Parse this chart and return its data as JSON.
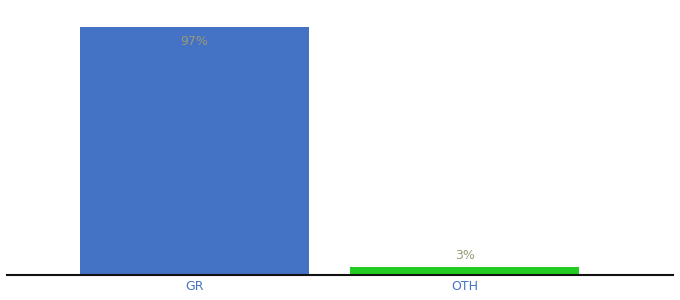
{
  "categories": [
    "GR",
    "OTH"
  ],
  "values": [
    97,
    3
  ],
  "bar_colors": [
    "#4472c4",
    "#22cc22"
  ],
  "label_texts": [
    "97%",
    "3%"
  ],
  "label_color": "#999977",
  "xlabel": "",
  "ylabel": "",
  "ylim": [
    0,
    105
  ],
  "background_color": "#ffffff",
  "tick_color": "#4472c4",
  "axis_line_color": "#111111",
  "bar_width": 0.55,
  "label_fontsize": 9,
  "tick_fontsize": 9,
  "x_positions": [
    0.35,
    1.0
  ]
}
